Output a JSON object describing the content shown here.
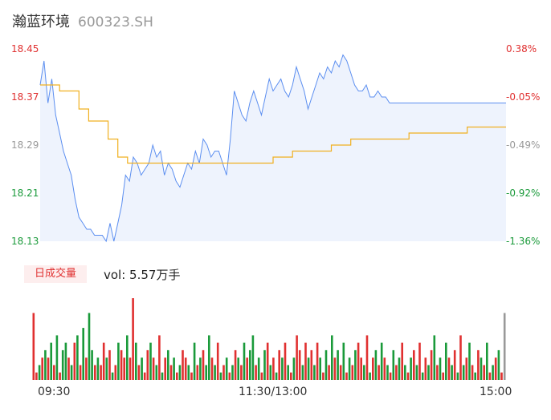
{
  "header": {
    "name": "瀚蓝环境",
    "code": "600323.SH"
  },
  "volume_panel": {
    "tag": "日成交量",
    "vol_label": "vol: 5.57万手"
  },
  "time_axis": {
    "start": "09:30",
    "mid": "11:30/13:00",
    "end": "15:00"
  },
  "colors": {
    "up": "#e03030",
    "down": "#1a9a3a",
    "price_line": "#5b8ef0",
    "avg_line": "#f0b020",
    "neutral": "#999999"
  },
  "chart_data": {
    "type": "line",
    "title": "",
    "y_left_ticks": [
      "18.45",
      "18.37",
      "18.29",
      "18.21",
      "18.13"
    ],
    "y_right_ticks": [
      "0.38%",
      "-0.05%",
      "-0.49%",
      "-0.92%",
      "-1.36%"
    ],
    "ylim": [
      18.13,
      18.45
    ],
    "x_range_minutes": [
      0,
      240
    ],
    "series": [
      {
        "name": "",
        "x": [
          0,
          2,
          4,
          6,
          8,
          10,
          12,
          14,
          16,
          18,
          20,
          22,
          24,
          26,
          28,
          30,
          32,
          34,
          36,
          38,
          40,
          42,
          44,
          46,
          48,
          50,
          52,
          54,
          56,
          58,
          60,
          62,
          64,
          66,
          68,
          70,
          72,
          74,
          76,
          78,
          80,
          82,
          84,
          86,
          88,
          90,
          92,
          94,
          96,
          98,
          100,
          102,
          104,
          106,
          108,
          110,
          112,
          114,
          116,
          118,
          120,
          122,
          124,
          126,
          128,
          130,
          132,
          134,
          136,
          138,
          140,
          142,
          144,
          146,
          148,
          150,
          152,
          154,
          156,
          158,
          160,
          162,
          164,
          166,
          168,
          170,
          172,
          174,
          176,
          178,
          180,
          182,
          184,
          186,
          188,
          190,
          192,
          194,
          196,
          198,
          200,
          202,
          204,
          206,
          208,
          210,
          212,
          214,
          216,
          218,
          220,
          222,
          224,
          226,
          228,
          230,
          232,
          234,
          236,
          238,
          240
        ],
        "values": [
          18.39,
          18.43,
          18.36,
          18.4,
          18.34,
          18.31,
          18.28,
          18.26,
          18.24,
          18.2,
          18.17,
          18.16,
          18.15,
          18.15,
          18.14,
          18.14,
          18.14,
          18.13,
          18.16,
          18.13,
          18.16,
          18.19,
          18.24,
          18.23,
          18.27,
          18.26,
          18.24,
          18.25,
          18.26,
          18.29,
          18.27,
          18.28,
          18.24,
          18.26,
          18.25,
          18.23,
          18.22,
          18.24,
          18.26,
          18.25,
          18.28,
          18.26,
          18.3,
          18.29,
          18.27,
          18.28,
          18.28,
          18.26,
          18.24,
          18.3,
          18.38,
          18.36,
          18.34,
          18.33,
          18.36,
          18.38,
          18.36,
          18.34,
          18.37,
          18.4,
          18.38,
          18.39,
          18.4,
          18.38,
          18.37,
          18.39,
          18.42,
          18.4,
          18.38,
          18.35,
          18.37,
          18.39,
          18.41,
          18.4,
          18.42,
          18.41,
          18.43,
          18.42,
          18.44,
          18.43,
          18.41,
          18.39,
          18.38,
          18.38,
          18.39,
          18.37,
          18.37,
          18.38,
          18.37,
          18.37,
          18.36,
          18.36,
          18.36,
          18.36,
          18.36,
          18.36,
          18.36,
          18.36,
          18.36,
          18.36,
          18.36,
          18.36,
          18.36,
          18.36,
          18.36,
          18.36,
          18.36,
          18.36,
          18.36,
          18.36,
          18.36,
          18.36,
          18.36,
          18.36,
          18.36,
          18.36,
          18.36,
          18.36,
          18.36,
          18.36,
          18.36
        ]
      },
      {
        "name": "",
        "x": [
          0,
          10,
          20,
          25,
          35,
          40,
          45,
          50,
          60,
          70,
          80,
          90,
          100,
          110,
          120,
          130,
          140,
          150,
          160,
          170,
          180,
          190,
          200,
          210,
          220,
          230,
          240
        ],
        "values": [
          18.39,
          18.38,
          18.35,
          18.33,
          18.3,
          18.27,
          18.26,
          18.26,
          18.26,
          18.26,
          18.26,
          18.26,
          18.26,
          18.26,
          18.27,
          18.28,
          18.28,
          18.29,
          18.3,
          18.3,
          18.3,
          18.31,
          18.31,
          18.31,
          18.32,
          18.32,
          18.32
        ]
      }
    ],
    "volume": {
      "values": [
        9,
        1,
        2,
        3,
        4,
        3,
        5,
        2,
        6,
        1,
        4,
        5,
        3,
        2,
        5,
        6,
        2,
        7,
        3,
        9,
        4,
        2,
        3,
        2,
        5,
        3,
        4,
        1,
        2,
        5,
        4,
        3,
        6,
        3,
        11,
        5,
        2,
        3,
        1,
        4,
        5,
        3,
        2,
        6,
        1,
        3,
        4,
        2,
        3,
        1,
        2,
        4,
        3,
        2,
        1,
        5,
        2,
        3,
        4,
        2,
        6,
        3,
        2,
        5,
        1,
        2,
        3,
        1,
        2,
        4,
        3,
        2,
        5,
        3,
        4,
        6,
        2,
        3,
        1,
        4,
        5,
        2,
        3,
        1,
        4,
        3,
        5,
        2,
        1,
        3,
        6,
        4,
        2,
        5,
        3,
        4,
        2,
        5,
        3,
        1,
        4,
        2,
        6,
        3,
        4,
        2,
        5,
        1,
        3,
        2,
        4,
        5,
        3,
        2,
        6,
        1,
        3,
        4,
        2,
        5,
        3,
        2,
        1,
        4,
        2,
        3,
        5,
        2,
        1,
        3,
        4,
        2,
        5,
        1,
        3,
        2,
        4,
        6,
        2,
        3,
        1,
        5,
        3,
        2,
        4,
        1,
        6,
        2,
        3,
        5,
        2,
        1,
        4,
        3,
        2,
        5,
        1,
        2,
        3,
        4,
        1,
        9
      ],
      "colors": [
        "up",
        "up",
        "down",
        "up",
        "down",
        "up",
        "down",
        "up",
        "down",
        "up",
        "down",
        "down",
        "up",
        "down",
        "up",
        "down",
        "up",
        "down",
        "up",
        "down",
        "down",
        "up",
        "down",
        "up",
        "up",
        "down",
        "up",
        "down",
        "up",
        "down",
        "up",
        "up",
        "down",
        "up",
        "up",
        "down",
        "up",
        "down",
        "up",
        "up",
        "down",
        "up",
        "down",
        "up",
        "down",
        "up",
        "down",
        "up",
        "down",
        "up",
        "down",
        "up",
        "up",
        "down",
        "up",
        "down",
        "up",
        "down",
        "up",
        "down",
        "down",
        "up",
        "down",
        "up",
        "down",
        "up",
        "down",
        "up",
        "down",
        "up",
        "down",
        "up",
        "down",
        "up",
        "down",
        "down",
        "up",
        "down",
        "up",
        "down",
        "up",
        "down",
        "up",
        "down",
        "up",
        "down",
        "up",
        "down",
        "up",
        "down",
        "up",
        "up",
        "down",
        "up",
        "down",
        "up",
        "down",
        "up",
        "down",
        "up",
        "down",
        "up",
        "down",
        "up",
        "down",
        "up",
        "down",
        "up",
        "down",
        "up",
        "down",
        "up",
        "up",
        "down",
        "up",
        "down",
        "up",
        "down",
        "up",
        "down",
        "up",
        "down",
        "up",
        "down",
        "up",
        "down",
        "up",
        "down",
        "up",
        "down",
        "up",
        "down",
        "up",
        "down",
        "up",
        "down",
        "up",
        "down",
        "up",
        "down",
        "up",
        "down",
        "up",
        "down",
        "up",
        "down",
        "up",
        "down",
        "up",
        "down",
        "up",
        "down",
        "up",
        "down",
        "up",
        "down",
        "up",
        "down",
        "up",
        "down",
        "up",
        "neutral"
      ]
    }
  }
}
